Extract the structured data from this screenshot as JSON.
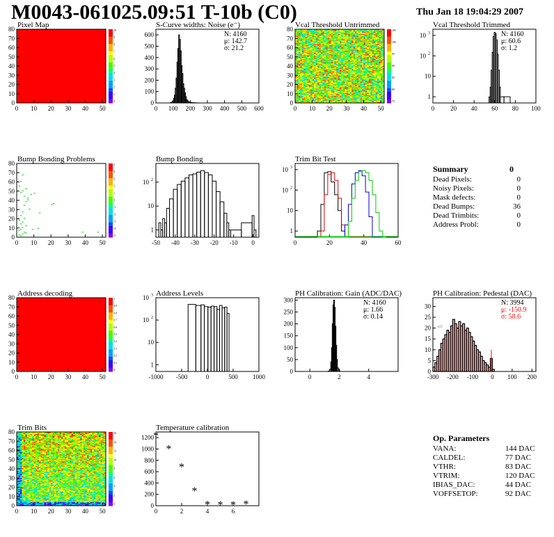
{
  "header": {
    "title": "M0043-061025.09:51 T-10b (C0)",
    "timestamp": "Thu Jan 18 19:04:29 2007"
  },
  "panels": {
    "pixel_map": {
      "title": "Pixel Map",
      "fill": "#ff0000",
      "palette_max_label": "10"
    },
    "scurve": {
      "title": "S-Curve widths: Noise (e⁻)",
      "stats": [
        "N: 4160",
        "μ: 142.7",
        "σ: 21.2"
      ]
    },
    "vcal_untrimmed": {
      "title": "Vcal Threshold Untrimmed"
    },
    "vcal_trimmed": {
      "title": "Vcal Threshold Trimmed",
      "stats": [
        "N: 4160",
        "μ: 60.6",
        "σ:  1.2"
      ]
    },
    "bump_problems": {
      "title": "Bump Bonding Problems"
    },
    "bump_bonding": {
      "title": "Bump Bonding"
    },
    "trim_bit_test": {
      "title": "Trim Bit Test"
    },
    "summary": {
      "heading": "Summary",
      "heading_value": "0",
      "rows": [
        {
          "label": "Dead Pixels:",
          "value": "0"
        },
        {
          "label": "Noisy Pixels:",
          "value": "0"
        },
        {
          "label": "Mask defects:",
          "value": "0"
        },
        {
          "label": "Dead Bumps:",
          "value": "36"
        },
        {
          "label": "Dead Trimbits:",
          "value": "0"
        },
        {
          "label": "Address Probl:",
          "value": "0"
        }
      ]
    },
    "address_decoding": {
      "title": "Address decoding"
    },
    "address_levels": {
      "title": "Address Levels"
    },
    "ph_gain": {
      "title": "PH Calibration: Gain (ADC/DAC)",
      "stats": [
        "N: 4160",
        "μ: 1.66",
        "σ: 0.14"
      ]
    },
    "ph_pedestal": {
      "title": "PH Calibration: Pedestal (DAC)",
      "stats": [
        "N: 3994",
        "μ: -150.9",
        "σ: 58.6"
      ],
      "overflow_marker": "<="
    },
    "trim_bits": {
      "title": "Trim Bits"
    },
    "temperature": {
      "title": "Temperature calibration"
    },
    "op_params": {
      "heading": "Op. Parameters",
      "rows": [
        {
          "label": "VANA:",
          "value": "144 DAC"
        },
        {
          "label": "CALDEL:",
          "value": "77 DAC"
        },
        {
          "label": "VTHR:",
          "value": "83 DAC"
        },
        {
          "label": "VTRIM:",
          "value": "120 DAC"
        },
        {
          "label": "IBIAS_DAC:",
          "value": "44 DAC"
        },
        {
          "label": "VOFFSETOP:",
          "value": "92 DAC"
        }
      ]
    }
  },
  "colors": {
    "stat_red": "#ff0000",
    "trim_red": "#dd0000",
    "trim_blue": "#0000cc",
    "trim_green": "#00cc00"
  },
  "chart_data": [
    {
      "id": "pixel_map",
      "type": "heatmap",
      "xlim": [
        0,
        52
      ],
      "ylim": [
        0,
        80
      ],
      "xticks": [
        0,
        10,
        20,
        30,
        40,
        50
      ],
      "yticks": [
        0,
        10,
        20,
        30,
        40,
        50,
        60,
        70,
        80
      ],
      "uniform_value": 10,
      "zlim": [
        0,
        10
      ],
      "palette_labels": [
        "10",
        "9",
        "8",
        "7",
        "6",
        "5",
        "4",
        "3",
        "2",
        "1",
        "0"
      ]
    },
    {
      "id": "scurve",
      "type": "bar",
      "xlim": [
        0,
        600
      ],
      "ylim": [
        0,
        650
      ],
      "xticks": [
        0,
        100,
        200,
        300,
        400,
        500,
        600
      ],
      "yticks": [
        0,
        100,
        200,
        300,
        400,
        500,
        600
      ],
      "x": [
        80,
        90,
        100,
        105,
        110,
        115,
        120,
        125,
        130,
        135,
        140,
        145,
        150,
        155,
        160,
        165,
        170,
        175,
        180,
        185,
        190,
        200,
        210,
        220,
        240
      ],
      "values": [
        0,
        5,
        15,
        40,
        70,
        130,
        220,
        360,
        480,
        600,
        560,
        460,
        330,
        260,
        170,
        130,
        90,
        55,
        30,
        20,
        10,
        5,
        3,
        2,
        1
      ]
    },
    {
      "id": "vcal_untrimmed",
      "type": "heatmap",
      "xlim": [
        0,
        52
      ],
      "ylim": [
        0,
        80
      ],
      "xticks": [
        0,
        10,
        20,
        30,
        40,
        50
      ],
      "yticks": [
        0,
        10,
        20,
        30,
        40,
        50,
        60,
        70,
        80
      ],
      "palette_labels": [
        "105",
        "100",
        "95",
        "90",
        "85",
        "80",
        "75"
      ]
    },
    {
      "id": "vcal_trimmed",
      "type": "bar",
      "log_y": true,
      "xlim": [
        0,
        100
      ],
      "ylim": [
        0.5,
        2000
      ],
      "xticks": [
        0,
        20,
        40,
        60,
        80,
        100
      ],
      "yticks": [
        1,
        10,
        100,
        1000
      ],
      "x": [
        55,
        56,
        57,
        58,
        59,
        60,
        61,
        62,
        63,
        64,
        65,
        66,
        72
      ],
      "values": [
        1,
        3,
        20,
        150,
        900,
        1400,
        1200,
        600,
        120,
        20,
        3,
        1,
        1
      ]
    },
    {
      "id": "bump_problems",
      "type": "scatter",
      "xlim": [
        0,
        52
      ],
      "ylim": [
        0,
        80
      ],
      "xticks": [
        0,
        10,
        20,
        30,
        40,
        50
      ],
      "yticks": [
        0,
        10,
        20,
        30,
        40,
        50,
        60,
        70,
        80
      ],
      "x": [
        1,
        2,
        3,
        4,
        5,
        1,
        2,
        3,
        5,
        2,
        3,
        1,
        4,
        2,
        3,
        7,
        4,
        5,
        6,
        8,
        10,
        2,
        20,
        21,
        38,
        47,
        1,
        3,
        5,
        2,
        4,
        6,
        13,
        9,
        12,
        3
      ],
      "y": [
        2,
        1,
        3,
        5,
        4,
        7,
        8,
        10,
        12,
        14,
        16,
        18,
        20,
        23,
        27,
        30,
        34,
        38,
        42,
        46,
        47,
        60,
        35,
        36,
        5,
        5,
        55,
        50,
        52,
        48,
        44,
        40,
        26,
        8,
        9,
        67
      ],
      "palette_labels": [
        "5",
        "4",
        "3",
        "2",
        "1",
        "0",
        "-1",
        "-2",
        "-3",
        "-4",
        "-5"
      ]
    },
    {
      "id": "bump_bonding",
      "type": "bar",
      "log_y": true,
      "xlim": [
        -50,
        3
      ],
      "ylim": [
        0.5,
        600
      ],
      "xticks": [
        -50,
        -40,
        -30,
        -20,
        -10,
        0
      ],
      "yticks": [
        1,
        10,
        100
      ],
      "x": [
        -48,
        -47,
        -46,
        -45,
        -44,
        -42,
        -40,
        -38,
        -36,
        -34,
        -32,
        -30,
        -28,
        -26,
        -24,
        -22,
        -20,
        -18,
        -16,
        -14,
        -13,
        -12,
        -11,
        -1,
        0,
        1
      ],
      "values": [
        2,
        1,
        3,
        2,
        8,
        20,
        50,
        80,
        110,
        150,
        200,
        220,
        260,
        300,
        250,
        200,
        110,
        40,
        15,
        5,
        2,
        1,
        1,
        2,
        4,
        1
      ]
    },
    {
      "id": "trim_bit_test",
      "type": "line",
      "log_y": true,
      "xlim": [
        0,
        60
      ],
      "ylim": [
        0.5,
        2000
      ],
      "xticks": [
        0,
        20,
        40,
        60
      ],
      "yticks": [
        1,
        10,
        100,
        1000
      ],
      "x": [
        14,
        16,
        18,
        20,
        22,
        24,
        26,
        28,
        30,
        32,
        34,
        36,
        38,
        40,
        42,
        44,
        46,
        48,
        50,
        52
      ],
      "series": [
        {
          "color": "#000000",
          "values": [
            1,
            20,
            700,
            800,
            250,
            60,
            10,
            1,
            0,
            0,
            0,
            0,
            0,
            0,
            0,
            0,
            0,
            0,
            0,
            0
          ]
        },
        {
          "color": "#dd0000",
          "values": [
            0,
            1,
            60,
            600,
            700,
            300,
            40,
            2,
            0,
            0,
            0,
            0,
            0,
            0,
            0,
            0,
            0,
            0,
            0,
            0
          ]
        },
        {
          "color": "#0000cc",
          "values": [
            0,
            0,
            0,
            0,
            0,
            0,
            0,
            0,
            2,
            20,
            200,
            700,
            900,
            500,
            80,
            5,
            0,
            0,
            0,
            0
          ]
        },
        {
          "color": "#00cc00",
          "values": [
            0,
            0,
            0,
            0,
            0,
            0,
            0,
            0,
            0,
            3,
            40,
            300,
            800,
            900,
            700,
            300,
            60,
            8,
            1,
            0
          ]
        }
      ]
    },
    {
      "id": "address_decoding",
      "type": "heatmap",
      "xlim": [
        0,
        52
      ],
      "ylim": [
        0,
        80
      ],
      "xticks": [
        0,
        10,
        20,
        30,
        40,
        50
      ],
      "yticks": [
        0,
        10,
        20,
        30,
        40,
        50,
        60,
        70,
        80
      ],
      "uniform_value": 1,
      "zlim": [
        0,
        1
      ],
      "palette_labels": [
        "1",
        "0.9",
        "0.8",
        "0.7",
        "0.6",
        "0.5",
        "0.4",
        "0.3",
        "0.2",
        "0.1",
        "0"
      ]
    },
    {
      "id": "address_levels",
      "type": "bar",
      "log_y": true,
      "xlim": [
        -1000,
        1000
      ],
      "ylim": [
        0.5,
        1000
      ],
      "xticks": [
        -1000,
        -500,
        0,
        500,
        1000
      ],
      "yticks": [
        1,
        10,
        100,
        1000
      ],
      "x": [
        -300,
        -150,
        -100,
        -20,
        40,
        100,
        160,
        210,
        260,
        310,
        360,
        400
      ],
      "values": [
        500,
        450,
        480,
        400,
        380,
        420,
        400,
        300,
        450,
        350,
        380,
        200
      ]
    },
    {
      "id": "ph_gain",
      "type": "bar",
      "xlim": [
        -1,
        6
      ],
      "ylim": [
        0,
        310
      ],
      "xticks": [
        0,
        2,
        4
      ],
      "yticks": [
        0,
        50,
        100,
        150,
        200,
        250,
        300
      ],
      "x": [
        1.3,
        1.4,
        1.45,
        1.5,
        1.55,
        1.6,
        1.65,
        1.7,
        1.75,
        1.8,
        1.85,
        1.9,
        2.0
      ],
      "values": [
        2,
        10,
        40,
        100,
        200,
        280,
        300,
        270,
        190,
        110,
        50,
        15,
        3
      ]
    },
    {
      "id": "ph_pedestal",
      "type": "bar",
      "xlim": [
        -300,
        220
      ],
      "ylim": [
        0,
        34
      ],
      "xticks": [
        -300,
        -200,
        -100,
        0,
        100,
        200
      ],
      "yticks": [
        0,
        5,
        10,
        15,
        20,
        25,
        30
      ],
      "x": [
        -295,
        -285,
        -275,
        -265,
        -255,
        -245,
        -235,
        -225,
        -215,
        -205,
        -195,
        -185,
        -175,
        -165,
        -155,
        -145,
        -135,
        -125,
        -115,
        -105,
        -95,
        -85,
        -75,
        -65,
        -55,
        -45,
        -35,
        -25,
        -15,
        -5,
        5
      ],
      "values": [
        2,
        4,
        7,
        10,
        13,
        15,
        17,
        19,
        18,
        21,
        24,
        22,
        20,
        23,
        21,
        22,
        19,
        20,
        18,
        16,
        14,
        12,
        10,
        9,
        7,
        5,
        4,
        3,
        2,
        6,
        1
      ]
    },
    {
      "id": "trim_bits",
      "type": "heatmap",
      "xlim": [
        0,
        52
      ],
      "ylim": [
        0,
        80
      ],
      "xticks": [
        0,
        10,
        20,
        30,
        40,
        50
      ],
      "yticks": [
        0,
        10,
        20,
        30,
        40,
        50,
        60,
        70,
        80
      ],
      "palette_labels": [
        "16",
        "14",
        "12",
        "10",
        "8",
        "6",
        "4",
        "2",
        "0"
      ]
    },
    {
      "id": "temperature",
      "type": "scatter",
      "xlim": [
        0,
        8
      ],
      "ylim": [
        0,
        1300
      ],
      "xticks": [
        0,
        2,
        4,
        6
      ],
      "yticks": [
        0,
        200,
        400,
        600,
        800,
        1000,
        1200
      ],
      "x": [
        0,
        1,
        2,
        3,
        4,
        5,
        6,
        7
      ],
      "y": [
        1230,
        1000,
        680,
        260,
        20,
        10,
        15,
        25
      ]
    }
  ]
}
